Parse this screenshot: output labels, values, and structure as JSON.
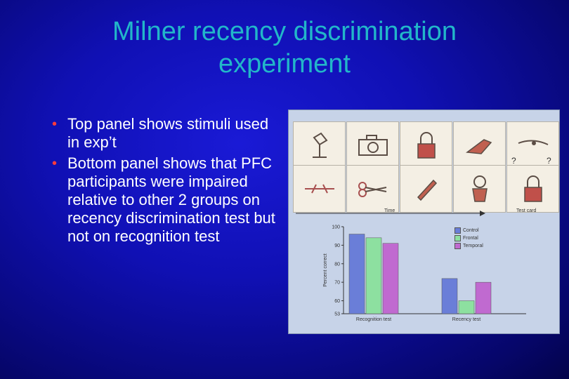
{
  "slide": {
    "title_line1": "Milner recency discrimination",
    "title_line2": "experiment",
    "bullets": [
      "Top panel shows stimuli used in exp’t",
      "Bottom panel shows that PFC participants were impaired relative to other 2 groups on recency discrimination test but not on recognition test"
    ]
  },
  "figure": {
    "stimuli_icons": [
      "lamp-icon",
      "camera-icon",
      "padlock-icon",
      "bird-icon",
      "whistle-icon",
      "bow-icon",
      "scissors-icon",
      "pen-icon",
      "vase-icon"
    ],
    "test_card_icons": [
      "bird-icon",
      "padlock-icon"
    ],
    "question_marks": [
      "?",
      "?"
    ],
    "time_label": "Time",
    "test_card_label": "Test card",
    "colors": {
      "control": "#6a7ed8",
      "frontal": "#8de0a0",
      "temporal": "#c06ad0"
    }
  },
  "chart_data": {
    "type": "bar",
    "categories": [
      "Recognition test",
      "Recency test"
    ],
    "series": [
      {
        "name": "Control",
        "values": [
          96,
          72
        ]
      },
      {
        "name": "Frontal",
        "values": [
          94,
          60
        ]
      },
      {
        "name": "Temporal",
        "values": [
          91,
          70
        ]
      }
    ],
    "ylabel": "Percent correct",
    "ylim": [
      53,
      100
    ],
    "yticks": [
      53,
      60,
      70,
      80,
      90,
      100
    ]
  }
}
